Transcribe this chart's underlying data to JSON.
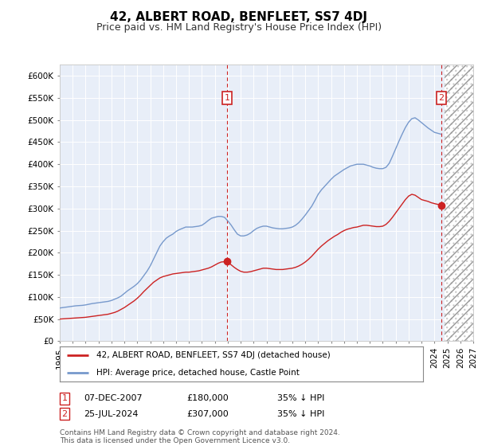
{
  "title": "42, ALBERT ROAD, BENFLEET, SS7 4DJ",
  "subtitle": "Price paid vs. HM Land Registry's House Price Index (HPI)",
  "ylim": [
    0,
    625000
  ],
  "yticks": [
    0,
    50000,
    100000,
    150000,
    200000,
    250000,
    300000,
    350000,
    400000,
    450000,
    500000,
    550000,
    600000
  ],
  "plot_bg": "#e8eef8",
  "fig_bg": "#ffffff",
  "grid_color": "#cccccc",
  "hpi_color": "#7799cc",
  "price_color": "#cc2222",
  "marker1_label": "07-DEC-2007",
  "marker2_label": "25-JUL-2024",
  "marker1_price": 180000,
  "marker2_price": 307000,
  "marker1_hpi_pct": "35% ↓ HPI",
  "marker2_hpi_pct": "35% ↓ HPI",
  "legend_line1": "42, ALBERT ROAD, BENFLEET, SS7 4DJ (detached house)",
  "legend_line2": "HPI: Average price, detached house, Castle Point",
  "footer": "Contains HM Land Registry data © Crown copyright and database right 2024.\nThis data is licensed under the Open Government Licence v3.0.",
  "title_fontsize": 11,
  "subtitle_fontsize": 9,
  "tick_fontsize": 7.5,
  "hpi_data": [
    [
      1995.0,
      75000
    ],
    [
      1995.25,
      76000
    ],
    [
      1995.5,
      77000
    ],
    [
      1995.75,
      78000
    ],
    [
      1996.0,
      79000
    ],
    [
      1996.25,
      80000
    ],
    [
      1996.5,
      80500
    ],
    [
      1996.75,
      81000
    ],
    [
      1997.0,
      82000
    ],
    [
      1997.25,
      83500
    ],
    [
      1997.5,
      85000
    ],
    [
      1997.75,
      86000
    ],
    [
      1998.0,
      87000
    ],
    [
      1998.25,
      88000
    ],
    [
      1998.5,
      89000
    ],
    [
      1998.75,
      90000
    ],
    [
      1999.0,
      92000
    ],
    [
      1999.25,
      95000
    ],
    [
      1999.5,
      98000
    ],
    [
      1999.75,
      102000
    ],
    [
      2000.0,
      108000
    ],
    [
      2000.25,
      114000
    ],
    [
      2000.5,
      119000
    ],
    [
      2000.75,
      124000
    ],
    [
      2001.0,
      130000
    ],
    [
      2001.25,
      138000
    ],
    [
      2001.5,
      148000
    ],
    [
      2001.75,
      158000
    ],
    [
      2002.0,
      170000
    ],
    [
      2002.25,
      185000
    ],
    [
      2002.5,
      200000
    ],
    [
      2002.75,
      215000
    ],
    [
      2003.0,
      225000
    ],
    [
      2003.25,
      233000
    ],
    [
      2003.5,
      238000
    ],
    [
      2003.75,
      242000
    ],
    [
      2004.0,
      248000
    ],
    [
      2004.25,
      252000
    ],
    [
      2004.5,
      255000
    ],
    [
      2004.75,
      258000
    ],
    [
      2005.0,
      258000
    ],
    [
      2005.25,
      258000
    ],
    [
      2005.5,
      259000
    ],
    [
      2005.75,
      260000
    ],
    [
      2006.0,
      262000
    ],
    [
      2006.25,
      267000
    ],
    [
      2006.5,
      273000
    ],
    [
      2006.75,
      278000
    ],
    [
      2007.0,
      280000
    ],
    [
      2007.25,
      282000
    ],
    [
      2007.5,
      282000
    ],
    [
      2007.75,
      280000
    ],
    [
      2008.0,
      272000
    ],
    [
      2008.25,
      263000
    ],
    [
      2008.5,
      252000
    ],
    [
      2008.75,
      242000
    ],
    [
      2009.0,
      238000
    ],
    [
      2009.25,
      238000
    ],
    [
      2009.5,
      240000
    ],
    [
      2009.75,
      244000
    ],
    [
      2010.0,
      250000
    ],
    [
      2010.25,
      255000
    ],
    [
      2010.5,
      258000
    ],
    [
      2010.75,
      260000
    ],
    [
      2011.0,
      260000
    ],
    [
      2011.25,
      258000
    ],
    [
      2011.5,
      256000
    ],
    [
      2011.75,
      255000
    ],
    [
      2012.0,
      254000
    ],
    [
      2012.25,
      254000
    ],
    [
      2012.5,
      255000
    ],
    [
      2012.75,
      256000
    ],
    [
      2013.0,
      258000
    ],
    [
      2013.25,
      262000
    ],
    [
      2013.5,
      268000
    ],
    [
      2013.75,
      276000
    ],
    [
      2014.0,
      285000
    ],
    [
      2014.25,
      295000
    ],
    [
      2014.5,
      305000
    ],
    [
      2014.75,
      318000
    ],
    [
      2015.0,
      332000
    ],
    [
      2015.25,
      342000
    ],
    [
      2015.5,
      350000
    ],
    [
      2015.75,
      358000
    ],
    [
      2016.0,
      366000
    ],
    [
      2016.25,
      373000
    ],
    [
      2016.5,
      378000
    ],
    [
      2016.75,
      383000
    ],
    [
      2017.0,
      388000
    ],
    [
      2017.25,
      392000
    ],
    [
      2017.5,
      396000
    ],
    [
      2017.75,
      398000
    ],
    [
      2018.0,
      400000
    ],
    [
      2018.25,
      400000
    ],
    [
      2018.5,
      400000
    ],
    [
      2018.75,
      398000
    ],
    [
      2019.0,
      396000
    ],
    [
      2019.25,
      393000
    ],
    [
      2019.5,
      391000
    ],
    [
      2019.75,
      390000
    ],
    [
      2020.0,
      390000
    ],
    [
      2020.25,
      393000
    ],
    [
      2020.5,
      402000
    ],
    [
      2020.75,
      418000
    ],
    [
      2021.0,
      435000
    ],
    [
      2021.25,
      452000
    ],
    [
      2021.5,
      468000
    ],
    [
      2021.75,
      483000
    ],
    [
      2022.0,
      495000
    ],
    [
      2022.25,
      503000
    ],
    [
      2022.5,
      505000
    ],
    [
      2022.75,
      500000
    ],
    [
      2023.0,
      494000
    ],
    [
      2023.25,
      488000
    ],
    [
      2023.5,
      482000
    ],
    [
      2023.75,
      477000
    ],
    [
      2024.0,
      472000
    ],
    [
      2024.25,
      470000
    ],
    [
      2024.5,
      468000
    ]
  ],
  "price_data": [
    [
      1995.0,
      50000
    ],
    [
      1995.25,
      50500
    ],
    [
      1995.5,
      51000
    ],
    [
      1995.75,
      51500
    ],
    [
      1996.0,
      52000
    ],
    [
      1996.25,
      52500
    ],
    [
      1996.5,
      53000
    ],
    [
      1996.75,
      53500
    ],
    [
      1997.0,
      54000
    ],
    [
      1997.25,
      55000
    ],
    [
      1997.5,
      56000
    ],
    [
      1997.75,
      57000
    ],
    [
      1998.0,
      58000
    ],
    [
      1998.25,
      59000
    ],
    [
      1998.5,
      60000
    ],
    [
      1998.75,
      61000
    ],
    [
      1999.0,
      63000
    ],
    [
      1999.25,
      65000
    ],
    [
      1999.5,
      68000
    ],
    [
      1999.75,
      72000
    ],
    [
      2000.0,
      76000
    ],
    [
      2000.25,
      81000
    ],
    [
      2000.5,
      86000
    ],
    [
      2000.75,
      91000
    ],
    [
      2001.0,
      97000
    ],
    [
      2001.25,
      104000
    ],
    [
      2001.5,
      112000
    ],
    [
      2001.75,
      119000
    ],
    [
      2002.0,
      126000
    ],
    [
      2002.25,
      133000
    ],
    [
      2002.5,
      138000
    ],
    [
      2002.75,
      143000
    ],
    [
      2003.0,
      146000
    ],
    [
      2003.25,
      148000
    ],
    [
      2003.5,
      150000
    ],
    [
      2003.75,
      152000
    ],
    [
      2004.0,
      153000
    ],
    [
      2004.25,
      154000
    ],
    [
      2004.5,
      155000
    ],
    [
      2004.75,
      156000
    ],
    [
      2005.0,
      156000
    ],
    [
      2005.25,
      157000
    ],
    [
      2005.5,
      158000
    ],
    [
      2005.75,
      159000
    ],
    [
      2006.0,
      161000
    ],
    [
      2006.25,
      163000
    ],
    [
      2006.5,
      165000
    ],
    [
      2006.75,
      168000
    ],
    [
      2007.0,
      172000
    ],
    [
      2007.25,
      176000
    ],
    [
      2007.5,
      179000
    ],
    [
      2007.917,
      180000
    ],
    [
      2008.0,
      178000
    ],
    [
      2008.25,
      173000
    ],
    [
      2008.5,
      167000
    ],
    [
      2008.75,
      162000
    ],
    [
      2009.0,
      158000
    ],
    [
      2009.25,
      156000
    ],
    [
      2009.5,
      156000
    ],
    [
      2009.75,
      157000
    ],
    [
      2010.0,
      159000
    ],
    [
      2010.25,
      161000
    ],
    [
      2010.5,
      163000
    ],
    [
      2010.75,
      165000
    ],
    [
      2011.0,
      165000
    ],
    [
      2011.25,
      164000
    ],
    [
      2011.5,
      163000
    ],
    [
      2011.75,
      162000
    ],
    [
      2012.0,
      162000
    ],
    [
      2012.25,
      162000
    ],
    [
      2012.5,
      163000
    ],
    [
      2012.75,
      164000
    ],
    [
      2013.0,
      165000
    ],
    [
      2013.25,
      167000
    ],
    [
      2013.5,
      170000
    ],
    [
      2013.75,
      174000
    ],
    [
      2014.0,
      179000
    ],
    [
      2014.25,
      185000
    ],
    [
      2014.5,
      192000
    ],
    [
      2014.75,
      200000
    ],
    [
      2015.0,
      208000
    ],
    [
      2015.25,
      215000
    ],
    [
      2015.5,
      221000
    ],
    [
      2015.75,
      227000
    ],
    [
      2016.0,
      232000
    ],
    [
      2016.25,
      237000
    ],
    [
      2016.5,
      241000
    ],
    [
      2016.75,
      246000
    ],
    [
      2017.0,
      250000
    ],
    [
      2017.25,
      253000
    ],
    [
      2017.5,
      255000
    ],
    [
      2017.75,
      257000
    ],
    [
      2018.0,
      258000
    ],
    [
      2018.25,
      260000
    ],
    [
      2018.5,
      262000
    ],
    [
      2018.75,
      262000
    ],
    [
      2019.0,
      261000
    ],
    [
      2019.25,
      260000
    ],
    [
      2019.5,
      259000
    ],
    [
      2019.75,
      259000
    ],
    [
      2020.0,
      260000
    ],
    [
      2020.25,
      264000
    ],
    [
      2020.5,
      271000
    ],
    [
      2020.75,
      280000
    ],
    [
      2021.0,
      290000
    ],
    [
      2021.25,
      300000
    ],
    [
      2021.5,
      310000
    ],
    [
      2021.75,
      320000
    ],
    [
      2022.0,
      328000
    ],
    [
      2022.25,
      332000
    ],
    [
      2022.5,
      330000
    ],
    [
      2022.75,
      325000
    ],
    [
      2023.0,
      320000
    ],
    [
      2023.25,
      318000
    ],
    [
      2023.5,
      316000
    ],
    [
      2023.75,
      313000
    ],
    [
      2024.0,
      311000
    ],
    [
      2024.583,
      307000
    ]
  ],
  "x_start": 1995,
  "x_end": 2027,
  "shade_start": 2024.75,
  "xtick_years": [
    1995,
    1996,
    1997,
    1998,
    1999,
    2000,
    2001,
    2002,
    2003,
    2004,
    2005,
    2006,
    2007,
    2008,
    2009,
    2010,
    2011,
    2012,
    2013,
    2014,
    2015,
    2016,
    2017,
    2018,
    2019,
    2020,
    2021,
    2022,
    2023,
    2024,
    2025,
    2026,
    2027
  ]
}
